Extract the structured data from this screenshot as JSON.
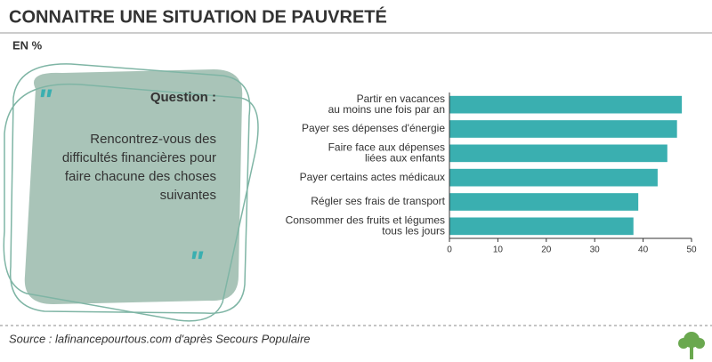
{
  "chart_data": {
    "type": "barh",
    "title": "CONNAITRE UNE SITUATION DE PAUVRETÉ",
    "subtitle": "EN %",
    "categories": [
      [
        "Partir en vacances",
        "au moins une fois par an"
      ],
      [
        "Payer ses dépenses d'énergie"
      ],
      [
        "Faire face aux dépenses",
        "liées aux enfants"
      ],
      [
        "Payer certains actes médicaux"
      ],
      [
        "Régler ses frais de transport"
      ],
      [
        "Consommer des fruits et légumes",
        "tous les jours"
      ]
    ],
    "values": [
      48,
      47,
      45,
      43,
      39,
      38
    ],
    "color": "#3aafb0",
    "xlim": [
      0,
      50
    ],
    "xticks": [
      0,
      10,
      20,
      30,
      40,
      50
    ]
  },
  "question": {
    "label": "Question :",
    "lines": [
      "Rencontrez-vous des",
      "difficultés financières pour",
      "faire chacune des choses",
      "suivantes"
    ]
  },
  "source": "Source : lafinancepourtous.com d'après Secours Populaire"
}
